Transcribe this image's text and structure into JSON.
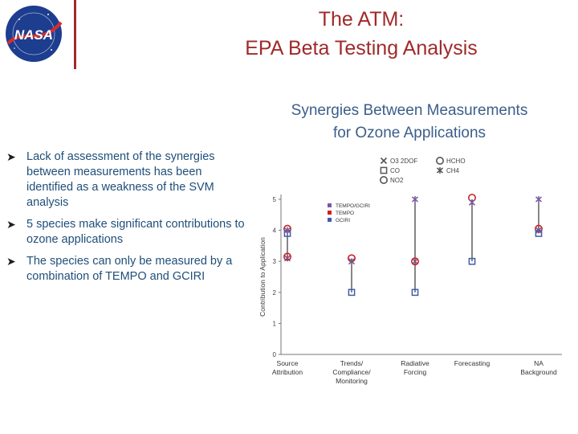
{
  "logo": {
    "text": "NASA"
  },
  "header": {
    "title_line1": "The ATM:",
    "title_line2": "EPA Beta Testing Analysis"
  },
  "section": {
    "subtitle_line1": "Synergies Between Measurements",
    "subtitle_line2": "for Ozone Applications"
  },
  "bullets": [
    {
      "text": "Lack of assessment of the synergies between measurements has been identified as a weakness of the SVM analysis"
    },
    {
      "text": "5 species make significant contributions to ozone applications"
    },
    {
      "text": "The species can only be measured by a combination of TEMPO and GCIRI"
    }
  ],
  "chart_data": {
    "type": "scatter",
    "ylabel": "Contribution to Application",
    "ylim": [
      0,
      5
    ],
    "yticks": [
      "0",
      "1",
      "2",
      "3",
      "4",
      "5"
    ],
    "categories": [
      [
        "Source",
        "Attribution"
      ],
      [
        "Trends/",
        "Compliance/",
        "Monitoring"
      ],
      [
        "Radiative",
        "Forcing"
      ],
      [
        "Forecasting"
      ],
      [
        "NA",
        "Background"
      ]
    ],
    "species_legend": [
      "O3 2DOF",
      "CO",
      "NO2",
      "HCHO",
      "CH4"
    ],
    "instrument_legend": [
      {
        "name": "TEMPO/GCIRI",
        "color": "#7a5aa0"
      },
      {
        "name": "TEMPO",
        "color": "#cc2222"
      },
      {
        "name": "GCIRI",
        "color": "#3d5ea8"
      }
    ],
    "points": [
      {
        "cat": 0,
        "species": "O3 2DOF",
        "inst": "TEMPO/GCIRI",
        "value": 3.1
      },
      {
        "cat": 0,
        "species": "HCHO",
        "inst": "TEMPO",
        "value": 4.05
      },
      {
        "cat": 0,
        "species": "CO",
        "inst": "GCIRI",
        "value": 3.9
      },
      {
        "cat": 0,
        "species": "CH4",
        "inst": "TEMPO/GCIRI",
        "value": 4.0
      },
      {
        "cat": 0,
        "species": "NO2",
        "inst": "TEMPO",
        "value": 3.15
      },
      {
        "cat": 1,
        "species": "HCHO",
        "inst": "TEMPO",
        "value": 3.1
      },
      {
        "cat": 1,
        "species": "O3 2DOF",
        "inst": "TEMPO/GCIRI",
        "value": 3.0
      },
      {
        "cat": 1,
        "species": "CO",
        "inst": "GCIRI",
        "value": 2.0
      },
      {
        "cat": 2,
        "species": "CH4",
        "inst": "TEMPO/GCIRI",
        "value": 5.0
      },
      {
        "cat": 2,
        "species": "O3 2DOF",
        "inst": "TEMPO/GCIRI",
        "value": 3.0
      },
      {
        "cat": 2,
        "species": "NO2",
        "inst": "TEMPO",
        "value": 3.0
      },
      {
        "cat": 2,
        "species": "CO",
        "inst": "GCIRI",
        "value": 2.0
      },
      {
        "cat": 3,
        "species": "NO2",
        "inst": "TEMPO",
        "value": 5.05
      },
      {
        "cat": 3,
        "species": "O3 2DOF",
        "inst": "TEMPO/GCIRI",
        "value": 4.9
      },
      {
        "cat": 3,
        "species": "CO",
        "inst": "GCIRI",
        "value": 3.0
      },
      {
        "cat": 4,
        "species": "CH4",
        "inst": "TEMPO/GCIRI",
        "value": 5.0
      },
      {
        "cat": 4,
        "species": "NO2",
        "inst": "TEMPO",
        "value": 4.05
      },
      {
        "cat": 4,
        "species": "O3 2DOF",
        "inst": "TEMPO/GCIRI",
        "value": 4.0
      },
      {
        "cat": 4,
        "species": "CO",
        "inst": "GCIRI",
        "value": 3.9
      }
    ],
    "ranges": [
      {
        "cat": 0,
        "min": 3.0,
        "max": 4.1
      },
      {
        "cat": 1,
        "min": 2.0,
        "max": 3.1
      },
      {
        "cat": 2,
        "min": 2.0,
        "max": 5.0
      },
      {
        "cat": 3,
        "min": 3.0,
        "max": 5.0
      },
      {
        "cat": 4,
        "min": 3.9,
        "max": 5.0
      }
    ],
    "grid": false
  }
}
